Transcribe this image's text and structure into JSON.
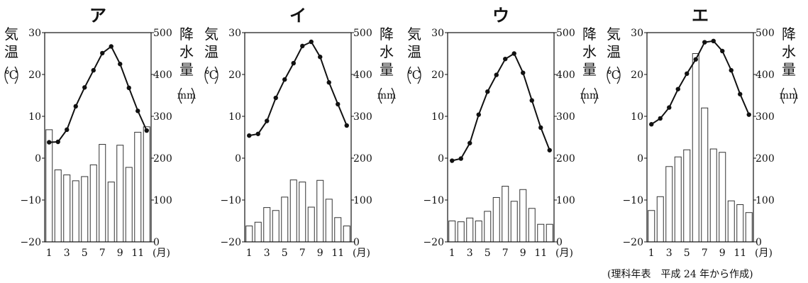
{
  "chart_data": [
    {
      "type": "bar+line",
      "title": "ア",
      "temp_ylabel": [
        "気",
        "温"
      ],
      "temp_unit": "℃",
      "precip_ylabel": [
        "降",
        "水",
        "量"
      ],
      "precip_unit": "mm",
      "x": [
        1,
        2,
        3,
        4,
        5,
        6,
        7,
        8,
        9,
        10,
        11,
        12
      ],
      "xtick_labels": [
        "1",
        "3",
        "5",
        "7",
        "9",
        "11"
      ],
      "x_unit": "(月)",
      "temp_ylim": [
        -20,
        30
      ],
      "temp_ticks": [
        "30",
        "20",
        "10",
        "0",
        "−10",
        "−20"
      ],
      "precip_ylim": [
        0,
        500
      ],
      "precip_ticks": [
        "500",
        "400",
        "300",
        "200",
        "100",
        "0"
      ],
      "temperature": [
        3.8,
        3.9,
        6.8,
        12.4,
        16.9,
        21.0,
        25.1,
        26.7,
        22.5,
        16.8,
        11.3,
        6.6
      ],
      "precipitation": [
        268,
        172,
        160,
        146,
        156,
        184,
        233,
        143,
        231,
        178,
        262,
        275
      ]
    },
    {
      "type": "bar+line",
      "title": "イ",
      "temp_ylabel": [
        "気",
        "温"
      ],
      "temp_unit": "℃",
      "precip_ylabel": [
        "降",
        "水",
        "量"
      ],
      "precip_unit": "mm",
      "x": [
        1,
        2,
        3,
        4,
        5,
        6,
        7,
        8,
        9,
        10,
        11,
        12
      ],
      "xtick_labels": [
        "1",
        "3",
        "5",
        "7",
        "9",
        "11"
      ],
      "x_unit": "(月)",
      "temp_ylim": [
        -20,
        30
      ],
      "temp_ticks": [
        "30",
        "20",
        "10",
        "0",
        "−10",
        "−20"
      ],
      "precip_ylim": [
        0,
        500
      ],
      "precip_ticks": [
        "500",
        "400",
        "300",
        "200",
        "100",
        "0"
      ],
      "temperature": [
        5.4,
        5.8,
        8.9,
        14.4,
        18.8,
        22.7,
        26.8,
        27.8,
        24.2,
        18.1,
        12.9,
        7.8
      ],
      "precipitation": [
        38,
        47,
        82,
        75,
        107,
        148,
        143,
        83,
        147,
        102,
        58,
        38
      ]
    },
    {
      "type": "bar+line",
      "title": "ウ",
      "temp_ylabel": [
        "気",
        "温"
      ],
      "temp_unit": "℃",
      "precip_ylabel": [
        "降",
        "水",
        "量"
      ],
      "precip_unit": "mm",
      "x": [
        1,
        2,
        3,
        4,
        5,
        6,
        7,
        8,
        9,
        10,
        11,
        12
      ],
      "xtick_labels": [
        "1",
        "3",
        "5",
        "7",
        "9",
        "11"
      ],
      "x_unit": "(月)",
      "temp_ylim": [
        -20,
        30
      ],
      "temp_ticks": [
        "30",
        "20",
        "10",
        "0",
        "−10",
        "−20"
      ],
      "precip_ylim": [
        0,
        500
      ],
      "precip_ticks": [
        "500",
        "400",
        "300",
        "200",
        "100",
        "0"
      ],
      "temperature": [
        -0.6,
        -0.1,
        3.6,
        10.4,
        15.9,
        19.9,
        23.7,
        25.0,
        20.4,
        13.8,
        7.3,
        1.9
      ],
      "precipitation": [
        50,
        48,
        57,
        50,
        73,
        106,
        133,
        97,
        125,
        80,
        42,
        42
      ]
    },
    {
      "type": "bar+line",
      "title": "エ",
      "temp_ylabel": [
        "気",
        "温"
      ],
      "temp_unit": "℃",
      "precip_ylabel": [
        "降",
        "水",
        "量"
      ],
      "precip_unit": "mm",
      "x": [
        1,
        2,
        3,
        4,
        5,
        6,
        7,
        8,
        9,
        10,
        11,
        12
      ],
      "xtick_labels": [
        "1",
        "3",
        "5",
        "7",
        "9",
        "11"
      ],
      "x_unit": "(月)",
      "temp_ylim": [
        -20,
        30
      ],
      "temp_ticks": [
        "30",
        "20",
        "10",
        "0",
        "−10",
        "−20"
      ],
      "precip_ylim": [
        0,
        500
      ],
      "precip_ticks": [
        "500",
        "400",
        "300",
        "200",
        "100",
        "0"
      ],
      "temperature": [
        8.1,
        9.5,
        12.1,
        16.5,
        20.2,
        23.6,
        27.7,
        28.0,
        25.6,
        21.0,
        15.3,
        10.4
      ],
      "precipitation": [
        75,
        108,
        180,
        203,
        220,
        450,
        320,
        222,
        214,
        98,
        89,
        70
      ]
    }
  ],
  "source_note": "(理科年表　平成 24 年から作成)",
  "colors": {
    "line": "#111111",
    "bar_fill": "#ffffff",
    "bar_stroke": "#333333",
    "axis": "#111111"
  }
}
